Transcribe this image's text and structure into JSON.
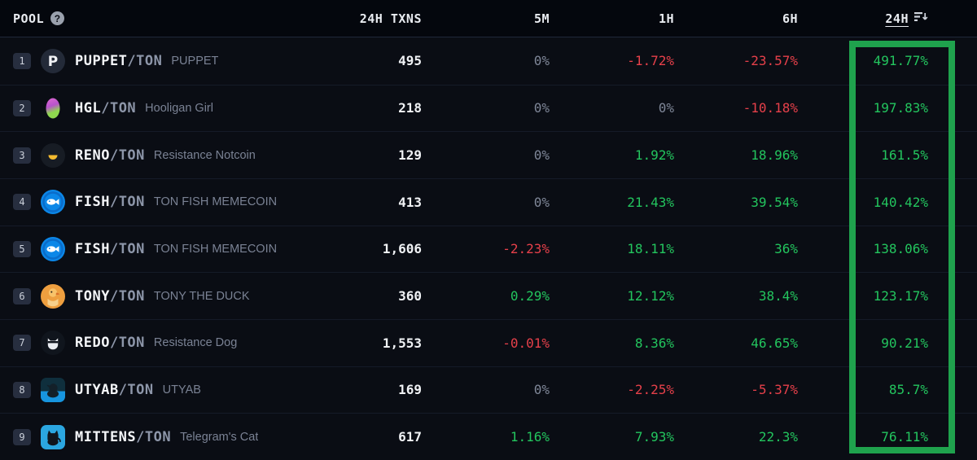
{
  "colors": {
    "positive": "#23c55e",
    "negative": "#e6404a",
    "neutral": "#7f8798",
    "highlight_border": "#1fa24d",
    "row_background": "#0a0d14"
  },
  "header": {
    "pool_label": "POOL",
    "help_icon": "question-mark-icon",
    "txns_label": "24H TXNS",
    "m5_label": "5M",
    "h1_label": "1H",
    "h6_label": "6H",
    "h24_label": "24H",
    "sorted_column": "24H",
    "sort_icon": "sort-descending-icon"
  },
  "highlight": {
    "column": "24H",
    "type": "green-box-annotation"
  },
  "rows": [
    {
      "rank": "1",
      "icon": "puppet-token-icon",
      "base": "PUPPET",
      "quote": "/TON",
      "name": "PUPPET",
      "txns": "495",
      "m5": "0%",
      "h1": "-1.72%",
      "h6": "-23.57%",
      "h24": "491.77%",
      "m5_dir": "neutral",
      "h1_dir": "down",
      "h6_dir": "down",
      "h24_dir": "up"
    },
    {
      "rank": "2",
      "icon": "hgl-token-icon",
      "base": "HGL",
      "quote": "/TON",
      "name": "Hooligan Girl",
      "txns": "218",
      "m5": "0%",
      "h1": "0%",
      "h6": "-10.18%",
      "h24": "197.83%",
      "m5_dir": "neutral",
      "h1_dir": "neutral",
      "h6_dir": "down",
      "h24_dir": "up"
    },
    {
      "rank": "3",
      "icon": "reno-token-icon",
      "base": "RENO",
      "quote": "/TON",
      "name": "Resistance Notcoin",
      "txns": "129",
      "m5": "0%",
      "h1": "1.92%",
      "h6": "18.96%",
      "h24": "161.5%",
      "m5_dir": "neutral",
      "h1_dir": "up",
      "h6_dir": "up",
      "h24_dir": "up"
    },
    {
      "rank": "4",
      "icon": "fish-token-icon",
      "base": "FISH",
      "quote": "/TON",
      "name": "TON FISH MEMECOIN",
      "txns": "413",
      "m5": "0%",
      "h1": "21.43%",
      "h6": "39.54%",
      "h24": "140.42%",
      "m5_dir": "neutral",
      "h1_dir": "up",
      "h6_dir": "up",
      "h24_dir": "up"
    },
    {
      "rank": "5",
      "icon": "fish-token-icon",
      "base": "FISH",
      "quote": "/TON",
      "name": "TON FISH MEMECOIN",
      "txns": "1,606",
      "m5": "-2.23%",
      "h1": "18.11%",
      "h6": "36%",
      "h24": "138.06%",
      "m5_dir": "down",
      "h1_dir": "up",
      "h6_dir": "up",
      "h24_dir": "up"
    },
    {
      "rank": "6",
      "icon": "tony-token-icon",
      "base": "TONY",
      "quote": "/TON",
      "name": "TONY THE DUCK",
      "txns": "360",
      "m5": "0.29%",
      "h1": "12.12%",
      "h6": "38.4%",
      "h24": "123.17%",
      "m5_dir": "up",
      "h1_dir": "up",
      "h6_dir": "up",
      "h24_dir": "up"
    },
    {
      "rank": "7",
      "icon": "redo-token-icon",
      "base": "REDO",
      "quote": "/TON",
      "name": "Resistance Dog",
      "txns": "1,553",
      "m5": "-0.01%",
      "h1": "8.36%",
      "h6": "46.65%",
      "h24": "90.21%",
      "m5_dir": "down",
      "h1_dir": "up",
      "h6_dir": "up",
      "h24_dir": "up"
    },
    {
      "rank": "8",
      "icon": "utyab-token-icon",
      "base": "UTYAB",
      "quote": "/TON",
      "name": "UTYAB",
      "txns": "169",
      "m5": "0%",
      "h1": "-2.25%",
      "h6": "-5.37%",
      "h24": "85.7%",
      "m5_dir": "neutral",
      "h1_dir": "down",
      "h6_dir": "down",
      "h24_dir": "up"
    },
    {
      "rank": "9",
      "icon": "mittens-token-icon",
      "base": "MITTENS",
      "quote": "/TON",
      "name": "Telegram's Cat",
      "txns": "617",
      "m5": "1.16%",
      "h1": "7.93%",
      "h6": "22.3%",
      "h24": "76.11%",
      "m5_dir": "up",
      "h1_dir": "up",
      "h6_dir": "up",
      "h24_dir": "up"
    }
  ]
}
